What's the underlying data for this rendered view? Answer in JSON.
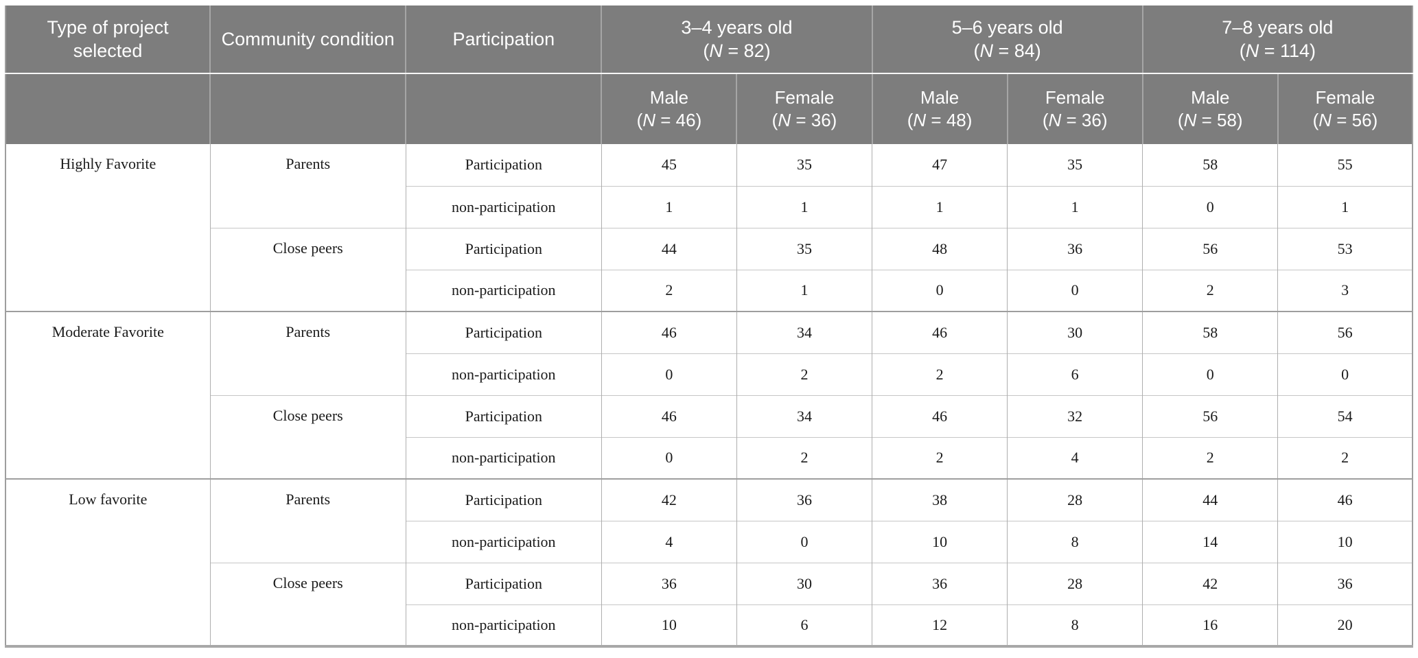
{
  "table": {
    "columns": {
      "type": "Type of project selected",
      "condition": "Community condition",
      "participation": "Participation"
    },
    "age_groups": [
      {
        "label": "3–4 years old",
        "n": "(N = 82)"
      },
      {
        "label": "5–6 years old",
        "n": "(N = 84)"
      },
      {
        "label": "7–8 years old",
        "n": "(N = 114)"
      }
    ],
    "sex_headers": [
      {
        "label": "Male",
        "n": "(N = 46)"
      },
      {
        "label": "Female",
        "n": "(N = 36)"
      },
      {
        "label": "Male",
        "n": "(N = 48)"
      },
      {
        "label": "Female",
        "n": "(N = 36)"
      },
      {
        "label": "Male",
        "n": "(N = 58)"
      },
      {
        "label": "Female",
        "n": "(N = 56)"
      }
    ],
    "groups": [
      {
        "type": "Highly Favorite",
        "conditions": [
          {
            "name": "Parents",
            "rows": [
              {
                "label": "Participation",
                "values": [
                  45,
                  35,
                  47,
                  35,
                  58,
                  55
                ]
              },
              {
                "label": "non-participation",
                "values": [
                  1,
                  1,
                  1,
                  1,
                  0,
                  1
                ]
              }
            ]
          },
          {
            "name": "Close peers",
            "rows": [
              {
                "label": "Participation",
                "values": [
                  44,
                  35,
                  48,
                  36,
                  56,
                  53
                ]
              },
              {
                "label": "non-participation",
                "values": [
                  2,
                  1,
                  0,
                  0,
                  2,
                  3
                ]
              }
            ]
          }
        ]
      },
      {
        "type": "Moderate Favorite",
        "conditions": [
          {
            "name": "Parents",
            "rows": [
              {
                "label": "Participation",
                "values": [
                  46,
                  34,
                  46,
                  30,
                  58,
                  56
                ]
              },
              {
                "label": "non-participation",
                "values": [
                  0,
                  2,
                  2,
                  6,
                  0,
                  0
                ]
              }
            ]
          },
          {
            "name": "Close peers",
            "rows": [
              {
                "label": "Participation",
                "values": [
                  46,
                  34,
                  46,
                  32,
                  56,
                  54
                ]
              },
              {
                "label": "non-participation",
                "values": [
                  0,
                  2,
                  2,
                  4,
                  2,
                  2
                ]
              }
            ]
          }
        ]
      },
      {
        "type": "Low favorite",
        "conditions": [
          {
            "name": "Parents",
            "rows": [
              {
                "label": "Participation",
                "values": [
                  42,
                  36,
                  38,
                  28,
                  44,
                  46
                ]
              },
              {
                "label": "non-participation",
                "values": [
                  4,
                  0,
                  10,
                  8,
                  14,
                  10
                ]
              }
            ]
          },
          {
            "name": "Close peers",
            "rows": [
              {
                "label": "Participation",
                "values": [
                  36,
                  30,
                  36,
                  28,
                  42,
                  36
                ]
              },
              {
                "label": "non-participation",
                "values": [
                  10,
                  6,
                  12,
                  8,
                  16,
                  20
                ]
              }
            ]
          }
        ]
      }
    ],
    "colors": {
      "header_bg": "#7d7d7d",
      "header_text": "#ffffff",
      "body_text": "#1a1a1a",
      "grid_row_line": "#c6c6c6",
      "grid_col_line": "#aeaeae",
      "grid_group_line": "#9e9e9e",
      "header_divider": "#f7f7f7"
    }
  }
}
